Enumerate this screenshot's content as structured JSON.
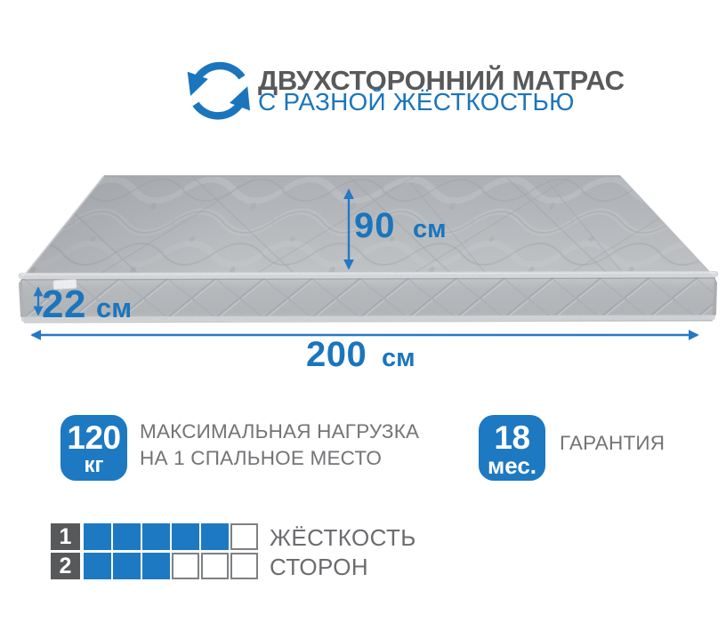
{
  "header": {
    "title": "ДВУХСТОРОННИЙ МАТРАС",
    "subtitle": "С РАЗНОЙ ЖЁСТКОСТЬЮ",
    "icon": "rotate-arrows-icon"
  },
  "dimensions": {
    "depth": {
      "value": "90",
      "unit": "см"
    },
    "height": {
      "value": "22",
      "unit": "см"
    },
    "length": {
      "value": "200",
      "unit": "см"
    }
  },
  "badges": [
    {
      "value": "120",
      "unit": "кг",
      "label_line1": "МАКСИМАЛЬНАЯ НАГРУЗКА",
      "label_line2": "НА 1 СПАЛЬНОЕ МЕСТО"
    },
    {
      "value": "18",
      "unit": "мес.",
      "label_line1": "ГАРАНТИЯ",
      "label_line2": ""
    }
  ],
  "hardness": {
    "label_line1": "ЖЁСТКОСТЬ",
    "label_line2": "СТОРОН",
    "rows": [
      {
        "index": "1",
        "filled": 5,
        "total": 6
      },
      {
        "index": "2",
        "filled": 3,
        "total": 6
      }
    ]
  },
  "colors": {
    "accent_blue": "#1b75bc",
    "badge_blue": "#1d79c1",
    "arrow_blue": "#2478c4",
    "dark_gray": "#58595b",
    "label_gray": "#737477",
    "mattress_gray": "#b7babd"
  }
}
